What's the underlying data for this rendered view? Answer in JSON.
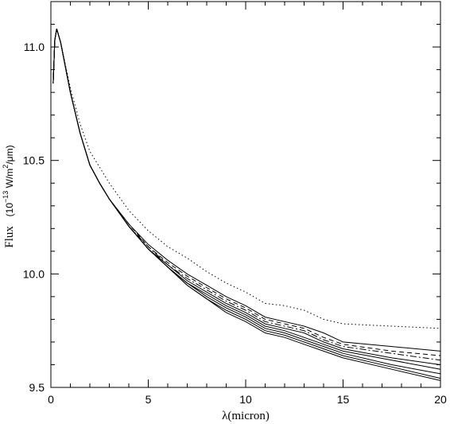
{
  "chart_data": {
    "type": "line",
    "title": "",
    "xlabel": "λ(micron)",
    "ylabel_main": "Flux",
    "ylabel_units_pre": "(10",
    "ylabel_units_exp": "−13",
    "ylabel_units_mid": " W/m",
    "ylabel_units_exp2": "2",
    "ylabel_units_post": "/μm)",
    "xlim": [
      0,
      20
    ],
    "ylim": [
      9.5,
      11.2
    ],
    "x_ticks": [
      0,
      5,
      10,
      15,
      20
    ],
    "y_ticks": [
      9.5,
      10.0,
      10.5,
      11.0
    ],
    "x_tick_labels": [
      "0",
      "5",
      "10",
      "15",
      "20"
    ],
    "y_tick_labels": [
      "9.5",
      "10.0",
      "10.5",
      "11.0"
    ],
    "grid": false,
    "legend": false,
    "series": [
      {
        "style": "solid",
        "points": [
          [
            0.12,
            10.84
          ],
          [
            0.2,
            11.03
          ],
          [
            0.3,
            11.08
          ],
          [
            0.5,
            11.02
          ],
          [
            1,
            10.8
          ],
          [
            1.5,
            10.62
          ],
          [
            2,
            10.48
          ],
          [
            2.5,
            10.4
          ],
          [
            3,
            10.33
          ],
          [
            4,
            10.22
          ],
          [
            5,
            10.13
          ],
          [
            6,
            10.06
          ],
          [
            7,
            10.0
          ],
          [
            8,
            9.95
          ],
          [
            9,
            9.9
          ],
          [
            10,
            9.86
          ],
          [
            11,
            9.81
          ],
          [
            12,
            9.79
          ],
          [
            13,
            9.77
          ],
          [
            14,
            9.74
          ],
          [
            15,
            9.7
          ],
          [
            17.5,
            9.68
          ],
          [
            20,
            9.66
          ]
        ]
      },
      {
        "style": "dashed",
        "points": [
          [
            0.12,
            10.84
          ],
          [
            0.2,
            11.03
          ],
          [
            0.3,
            11.08
          ],
          [
            0.5,
            11.02
          ],
          [
            1,
            10.8
          ],
          [
            1.5,
            10.62
          ],
          [
            2,
            10.48
          ],
          [
            2.5,
            10.4
          ],
          [
            3,
            10.33
          ],
          [
            4,
            10.22
          ],
          [
            5,
            10.12
          ],
          [
            6,
            10.05
          ],
          [
            7,
            9.99
          ],
          [
            8,
            9.94
          ],
          [
            9,
            9.89
          ],
          [
            10,
            9.85
          ],
          [
            11,
            9.8
          ],
          [
            12,
            9.78
          ],
          [
            13,
            9.76
          ],
          [
            14,
            9.72
          ],
          [
            15,
            9.69
          ],
          [
            17.5,
            9.66
          ],
          [
            20,
            9.64
          ]
        ]
      },
      {
        "style": "dashdot",
        "points": [
          [
            0.12,
            10.84
          ],
          [
            0.2,
            11.03
          ],
          [
            0.3,
            11.08
          ],
          [
            0.5,
            11.02
          ],
          [
            1,
            10.8
          ],
          [
            1.5,
            10.62
          ],
          [
            2,
            10.48
          ],
          [
            2.5,
            10.4
          ],
          [
            3,
            10.33
          ],
          [
            4,
            10.21
          ],
          [
            5,
            10.12
          ],
          [
            6,
            10.04
          ],
          [
            7,
            9.98
          ],
          [
            8,
            9.93
          ],
          [
            9,
            9.88
          ],
          [
            10,
            9.84
          ],
          [
            11,
            9.79
          ],
          [
            12,
            9.77
          ],
          [
            13,
            9.75
          ],
          [
            14,
            9.71
          ],
          [
            15,
            9.68
          ],
          [
            17.5,
            9.65
          ],
          [
            20,
            9.62
          ]
        ]
      },
      {
        "style": "solid",
        "points": [
          [
            0.12,
            10.84
          ],
          [
            0.2,
            11.03
          ],
          [
            0.3,
            11.08
          ],
          [
            0.5,
            11.02
          ],
          [
            1,
            10.8
          ],
          [
            1.5,
            10.62
          ],
          [
            2,
            10.48
          ],
          [
            2.5,
            10.4
          ],
          [
            3,
            10.33
          ],
          [
            4,
            10.21
          ],
          [
            5,
            10.11
          ],
          [
            6,
            10.04
          ],
          [
            7,
            9.97
          ],
          [
            8,
            9.92
          ],
          [
            9,
            9.87
          ],
          [
            10,
            9.83
          ],
          [
            11,
            9.78
          ],
          [
            12,
            9.76
          ],
          [
            13,
            9.74
          ],
          [
            14,
            9.7
          ],
          [
            15,
            9.67
          ],
          [
            17.5,
            9.63
          ],
          [
            20,
            9.6
          ]
        ]
      },
      {
        "style": "solid",
        "points": [
          [
            0.12,
            10.84
          ],
          [
            0.2,
            11.03
          ],
          [
            0.3,
            11.08
          ],
          [
            0.5,
            11.02
          ],
          [
            1,
            10.8
          ],
          [
            1.5,
            10.62
          ],
          [
            2,
            10.48
          ],
          [
            2.5,
            10.4
          ],
          [
            3,
            10.33
          ],
          [
            4,
            10.21
          ],
          [
            5,
            10.11
          ],
          [
            6,
            10.03
          ],
          [
            7,
            9.96
          ],
          [
            8,
            9.91
          ],
          [
            9,
            9.86
          ],
          [
            10,
            9.82
          ],
          [
            11,
            9.77
          ],
          [
            12,
            9.75
          ],
          [
            13,
            9.72
          ],
          [
            14,
            9.69
          ],
          [
            15,
            9.66
          ],
          [
            17.5,
            9.62
          ],
          [
            20,
            9.58
          ]
        ]
      },
      {
        "style": "solid",
        "points": [
          [
            0.12,
            10.84
          ],
          [
            0.2,
            11.03
          ],
          [
            0.3,
            11.08
          ],
          [
            0.5,
            11.02
          ],
          [
            1,
            10.8
          ],
          [
            1.5,
            10.62
          ],
          [
            2,
            10.48
          ],
          [
            2.5,
            10.4
          ],
          [
            3,
            10.33
          ],
          [
            4,
            10.21
          ],
          [
            5,
            10.11
          ],
          [
            6,
            10.03
          ],
          [
            7,
            9.96
          ],
          [
            8,
            9.9
          ],
          [
            9,
            9.85
          ],
          [
            10,
            9.81
          ],
          [
            11,
            9.76
          ],
          [
            12,
            9.74
          ],
          [
            13,
            9.71
          ],
          [
            14,
            9.68
          ],
          [
            15,
            9.65
          ],
          [
            17.5,
            9.6
          ],
          [
            20,
            9.56
          ]
        ]
      },
      {
        "style": "solid",
        "points": [
          [
            0.12,
            10.84
          ],
          [
            0.2,
            11.03
          ],
          [
            0.3,
            11.08
          ],
          [
            0.5,
            11.02
          ],
          [
            1,
            10.8
          ],
          [
            1.5,
            10.62
          ],
          [
            2,
            10.48
          ],
          [
            2.5,
            10.4
          ],
          [
            3,
            10.33
          ],
          [
            4,
            10.21
          ],
          [
            5,
            10.11
          ],
          [
            6,
            10.03
          ],
          [
            7,
            9.95
          ],
          [
            8,
            9.89
          ],
          [
            9,
            9.84
          ],
          [
            10,
            9.8
          ],
          [
            11,
            9.75
          ],
          [
            12,
            9.73
          ],
          [
            13,
            9.7
          ],
          [
            14,
            9.67
          ],
          [
            15,
            9.64
          ],
          [
            17.5,
            9.59
          ],
          [
            20,
            9.54
          ]
        ]
      },
      {
        "style": "solid",
        "points": [
          [
            0.12,
            10.84
          ],
          [
            0.2,
            11.03
          ],
          [
            0.3,
            11.08
          ],
          [
            0.5,
            11.02
          ],
          [
            1,
            10.8
          ],
          [
            1.5,
            10.62
          ],
          [
            2,
            10.48
          ],
          [
            2.5,
            10.4
          ],
          [
            3,
            10.33
          ],
          [
            4,
            10.21
          ],
          [
            5,
            10.11
          ],
          [
            6,
            10.03
          ],
          [
            7,
            9.95
          ],
          [
            8,
            9.89
          ],
          [
            9,
            9.83
          ],
          [
            10,
            9.79
          ],
          [
            11,
            9.74
          ],
          [
            12,
            9.72
          ],
          [
            13,
            9.69
          ],
          [
            14,
            9.66
          ],
          [
            15,
            9.63
          ],
          [
            17.5,
            9.58
          ],
          [
            20,
            9.53
          ]
        ]
      },
      {
        "style": "dotted",
        "points": [
          [
            0.12,
            10.84
          ],
          [
            0.2,
            11.03
          ],
          [
            0.3,
            11.08
          ],
          [
            0.5,
            11.02
          ],
          [
            1,
            10.82
          ],
          [
            1.5,
            10.66
          ],
          [
            2,
            10.54
          ],
          [
            2.5,
            10.47
          ],
          [
            3,
            10.4
          ],
          [
            4,
            10.28
          ],
          [
            5,
            10.19
          ],
          [
            6,
            10.12
          ],
          [
            7,
            10.07
          ],
          [
            8,
            10.01
          ],
          [
            9,
            9.96
          ],
          [
            10,
            9.92
          ],
          [
            11,
            9.87
          ],
          [
            12,
            9.86
          ],
          [
            13,
            9.84
          ],
          [
            14,
            9.8
          ],
          [
            15,
            9.78
          ],
          [
            17.5,
            9.77
          ],
          [
            20,
            9.76
          ]
        ]
      }
    ]
  }
}
